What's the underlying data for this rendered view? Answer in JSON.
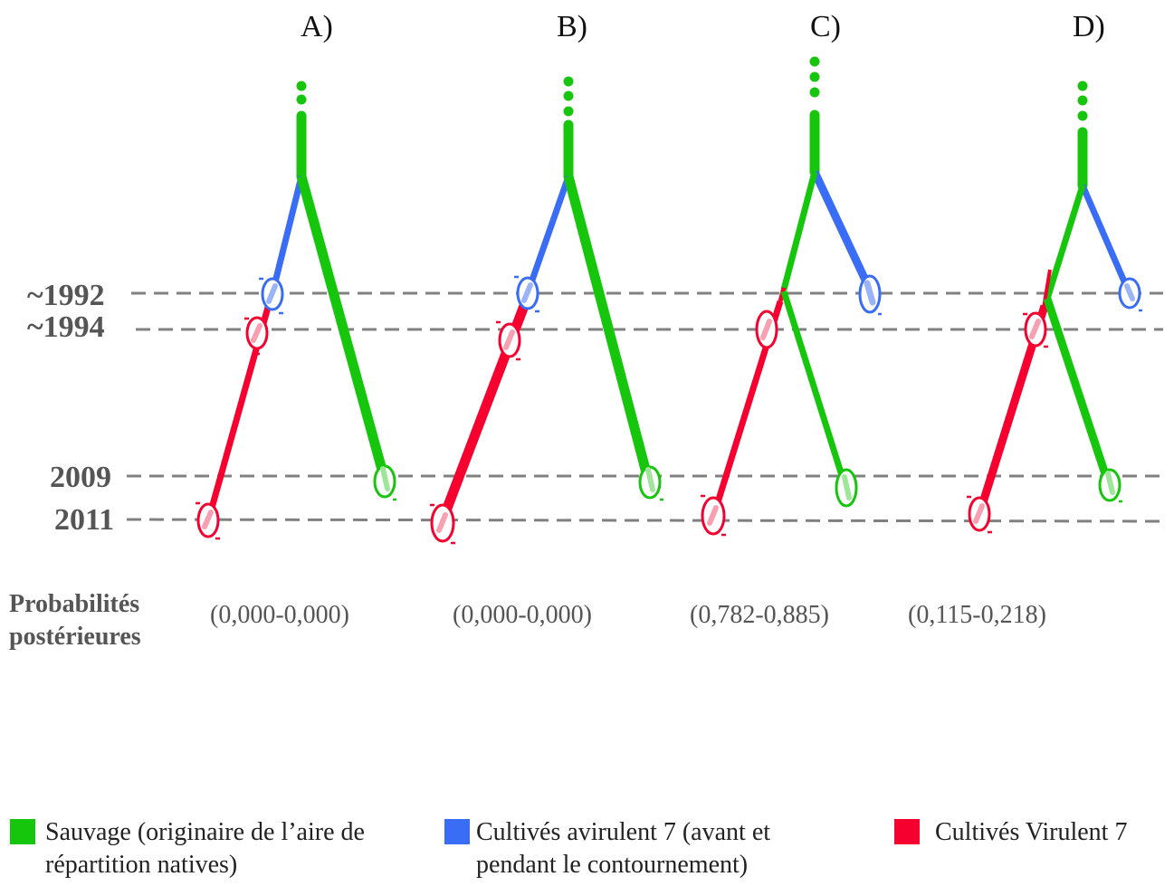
{
  "panels": [
    {
      "label": "A)",
      "probability": "(0,000-0,000)"
    },
    {
      "label": "B)",
      "probability": "(0,000-0,000)"
    },
    {
      "label": "C)",
      "probability": "(0,782-0,885)"
    },
    {
      "label": "D)",
      "probability": "(0,115-0,218)"
    }
  ],
  "years": [
    "~1992",
    "~1994",
    "2009",
    "2011"
  ],
  "probability_title": "Probabilités postérieures",
  "legend": [
    {
      "label": "Sauvage (originaire de l’aire de répartition natives)",
      "color": "#16c60c"
    },
    {
      "label": "Cultivés avirulent 7 (avant et pendant le contournement)",
      "color": "#3a6df5"
    },
    {
      "label": "Cultivés Virulent 7",
      "color": "#f5002f"
    }
  ],
  "colors": {
    "wild": "#16c60c",
    "avirulent": "#3a6df5",
    "virulent": "#f5002f",
    "grid": "#808080"
  }
}
